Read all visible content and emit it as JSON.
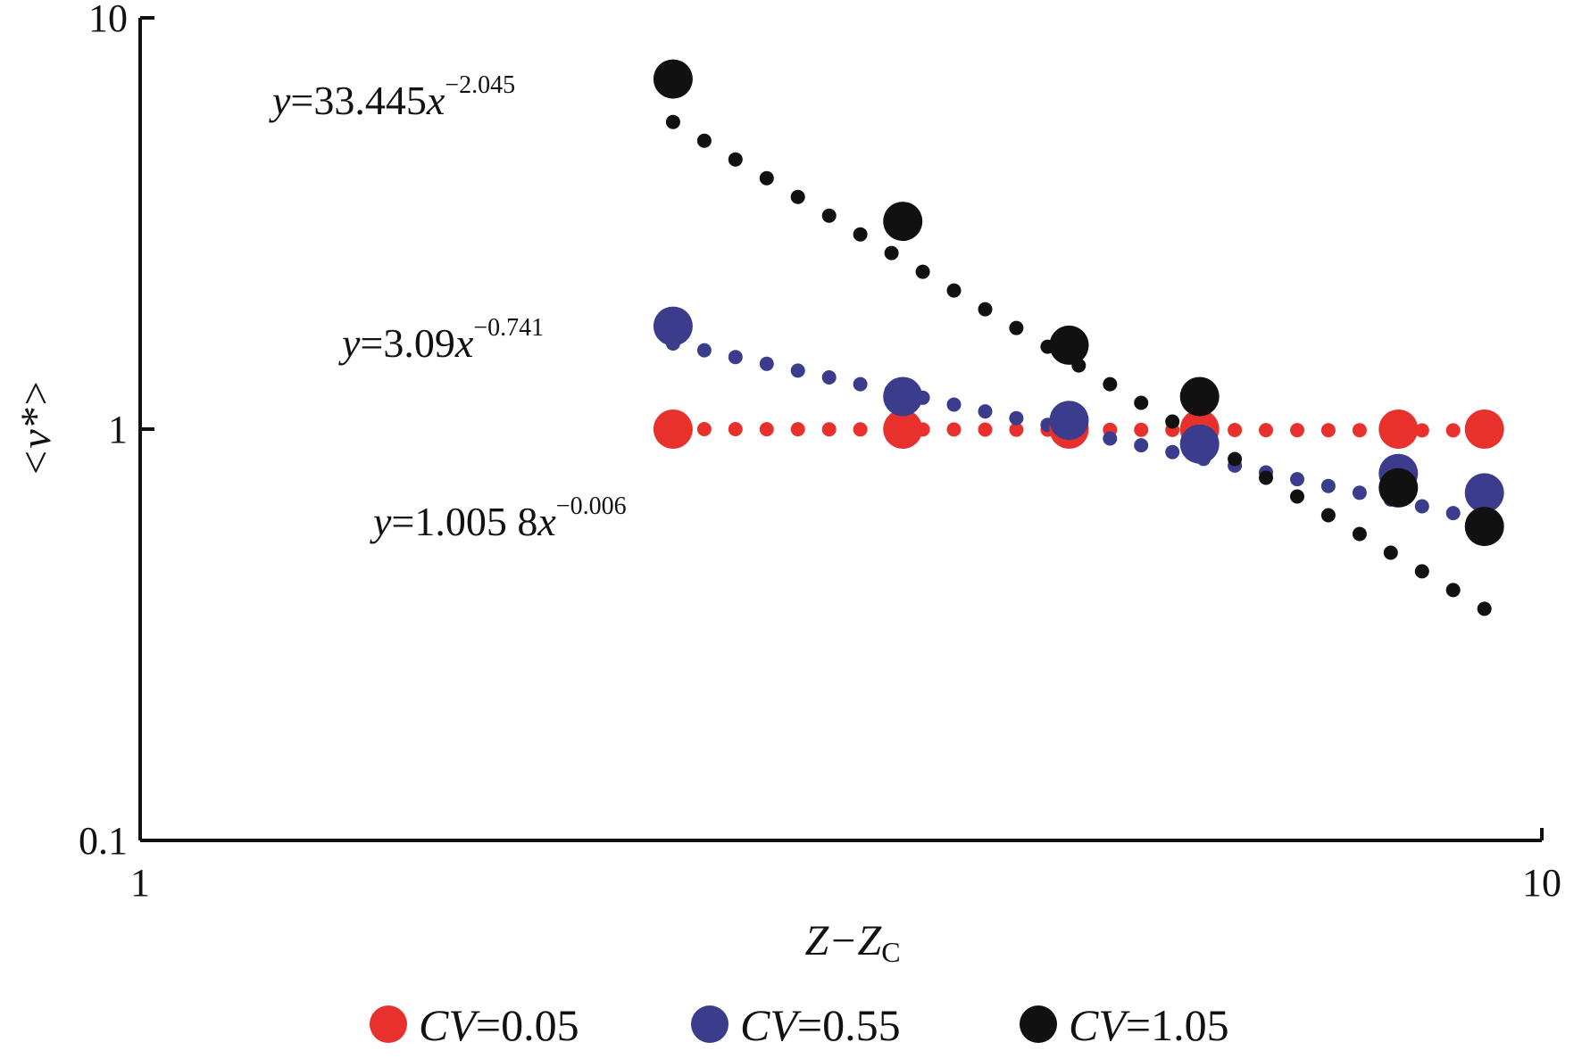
{
  "chart_data": {
    "type": "scatter",
    "xscale": "log",
    "yscale": "log",
    "xlim": [
      1,
      10
    ],
    "ylim": [
      0.1,
      10
    ],
    "xticks": [
      {
        "value": 1,
        "label": "1"
      },
      {
        "value": 10,
        "label": "10"
      }
    ],
    "yticks": [
      {
        "value": 0.1,
        "label": "0.1"
      },
      {
        "value": 1,
        "label": "1"
      },
      {
        "value": 10,
        "label": "10"
      }
    ],
    "xlabel": {
      "main": "Z−Z",
      "sub": "C"
    },
    "ylabel": "<v*>",
    "grid": false,
    "legend_position": "bottom",
    "series": [
      {
        "name": "CV=0.05",
        "legend": {
          "var": "CV",
          "rest": "=0.05"
        },
        "color": "#e8302c",
        "x": [
          2.4,
          3.5,
          4.6,
          5.7,
          7.9,
          9.1
        ],
        "y": [
          1.0,
          1.0,
          1.0,
          1.0,
          1.0,
          1.0
        ],
        "fit": {
          "a": 1.0058,
          "b": -0.006,
          "x_start": 2.4,
          "x_end": 9.1
        },
        "equation": {
          "y": "y",
          "coef": "=1.005 8",
          "x": "x",
          "exp": "−0.006"
        }
      },
      {
        "name": "CV=0.55",
        "legend": {
          "var": "CV",
          "rest": "=0.55"
        },
        "color": "#3c3c8c",
        "x": [
          2.4,
          3.5,
          4.6,
          5.7,
          7.9,
          9.1
        ],
        "y": [
          1.78,
          1.2,
          1.05,
          0.92,
          0.78,
          0.7
        ],
        "fit": {
          "a": 3.09,
          "b": -0.741,
          "x_start": 2.4,
          "x_end": 9.1
        },
        "equation": {
          "y": "y",
          "coef": "=3.09",
          "x": "x",
          "exp": "−0.741"
        }
      },
      {
        "name": "CV=1.05",
        "legend": {
          "var": "CV",
          "rest": "=1.05"
        },
        "color": "#111111",
        "x": [
          2.4,
          3.5,
          4.6,
          5.7,
          7.9,
          9.1
        ],
        "y": [
          7.1,
          3.2,
          1.6,
          1.2,
          0.72,
          0.58
        ],
        "fit": {
          "a": 33.445,
          "b": -2.045,
          "x_start": 2.4,
          "x_end": 9.1
        },
        "equation": {
          "y": "y",
          "coef": "=33.445",
          "x": "x",
          "exp": "−2.045"
        }
      }
    ]
  }
}
